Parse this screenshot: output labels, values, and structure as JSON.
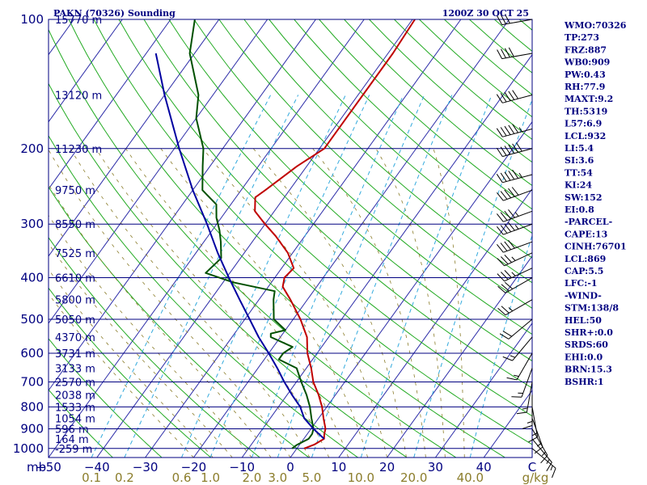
{
  "header": {
    "station": "PAKN (70326) Sounding",
    "time": "1200Z 30 OCT 25"
  },
  "chart_data": {
    "type": "skew-t",
    "p_top": 100,
    "p_bot": 1050,
    "t_range_bottom": [
      -50,
      50
    ],
    "pressure_ticks": [
      {
        "p": 100,
        "label": "100"
      },
      {
        "p": 200,
        "label": "200"
      },
      {
        "p": 300,
        "label": "300"
      },
      {
        "p": 400,
        "label": "400"
      },
      {
        "p": 500,
        "label": "500"
      },
      {
        "p": 600,
        "label": "600"
      },
      {
        "p": 700,
        "label": "700"
      },
      {
        "p": 800,
        "label": "800"
      },
      {
        "p": 900,
        "label": "900"
      },
      {
        "p": 1000,
        "label": "1000"
      }
    ],
    "pressure_unit": "mb",
    "height_levels": [
      {
        "p": 100,
        "label": "15770 m"
      },
      {
        "p": 150,
        "label": "13120 m"
      },
      {
        "p": 200,
        "label": "11230 m"
      },
      {
        "p": 250,
        "label": "9750 m"
      },
      {
        "p": 300,
        "label": "8550 m"
      },
      {
        "p": 350,
        "label": "7525 m"
      },
      {
        "p": 400,
        "label": "6610 m"
      },
      {
        "p": 450,
        "label": "5800 m"
      },
      {
        "p": 500,
        "label": "5050 m"
      },
      {
        "p": 550,
        "label": "4370 m"
      },
      {
        "p": 600,
        "label": "3731 m"
      },
      {
        "p": 650,
        "label": "3133 m"
      },
      {
        "p": 700,
        "label": "2570 m"
      },
      {
        "p": 750,
        "label": "2038 m"
      },
      {
        "p": 800,
        "label": "1533 m"
      },
      {
        "p": 850,
        "label": "1054 m"
      },
      {
        "p": 900,
        "label": "596 m"
      },
      {
        "p": 950,
        "label": "164 m"
      },
      {
        "p": 1000,
        "label": "-259 m"
      }
    ],
    "temp_ticks": [
      {
        "t": -50,
        "label": "−50"
      },
      {
        "t": -40,
        "label": "−40"
      },
      {
        "t": -30,
        "label": "−30"
      },
      {
        "t": -20,
        "label": "−20"
      },
      {
        "t": -10,
        "label": "−10"
      },
      {
        "t": 0,
        "label": "0"
      },
      {
        "t": 10,
        "label": "10"
      },
      {
        "t": 20,
        "label": "20"
      },
      {
        "t": 30,
        "label": "30"
      },
      {
        "t": 40,
        "label": "40"
      }
    ],
    "temp_axis_end_label": "C",
    "mixing_ratio_ticks": [
      {
        "w": 0.1,
        "label": "0.1"
      },
      {
        "w": 0.2,
        "label": "0.2"
      },
      {
        "w": 0.6,
        "label": "0.6"
      },
      {
        "w": 1.0,
        "label": "1.0"
      },
      {
        "w": 2.0,
        "label": "2.0"
      },
      {
        "w": 3.0,
        "label": "3.0"
      },
      {
        "w": 5.0,
        "label": "5.0"
      },
      {
        "w": 10.0,
        "label": "10.0"
      },
      {
        "w": 20.0,
        "label": "20.0"
      },
      {
        "w": 40.0,
        "label": "40.0"
      }
    ],
    "mixing_ratio_unit": "g/kg",
    "series": [
      {
        "kind": "temperature",
        "color": "#c00000",
        "points": [
          [
            1000,
            1.5
          ],
          [
            980,
            3.0
          ],
          [
            950,
            4.2
          ],
          [
            925,
            3.5
          ],
          [
            900,
            3.0
          ],
          [
            850,
            1.0
          ],
          [
            800,
            -1.0
          ],
          [
            750,
            -3.5
          ],
          [
            700,
            -6.5
          ],
          [
            650,
            -9.0
          ],
          [
            600,
            -12.0
          ],
          [
            550,
            -14.5
          ],
          [
            500,
            -18.5
          ],
          [
            450,
            -23.5
          ],
          [
            420,
            -27.0
          ],
          [
            400,
            -28.0
          ],
          [
            380,
            -27.5
          ],
          [
            350,
            -31.0
          ],
          [
            320,
            -36.0
          ],
          [
            300,
            -40.0
          ],
          [
            280,
            -44.0
          ],
          [
            260,
            -46.0
          ],
          [
            250,
            -45.0
          ],
          [
            220,
            -42.0
          ],
          [
            200,
            -39.0
          ],
          [
            150,
            -39.0
          ],
          [
            120,
            -39.0
          ],
          [
            100,
            -39.5
          ]
        ]
      },
      {
        "kind": "dewpoint",
        "color": "#005000",
        "points": [
          [
            1000,
            -1.0
          ],
          [
            980,
            -0.5
          ],
          [
            950,
            1.0
          ],
          [
            925,
            1.0
          ],
          [
            900,
            0.5
          ],
          [
            850,
            -1.5
          ],
          [
            800,
            -3.5
          ],
          [
            750,
            -6.0
          ],
          [
            700,
            -9.0
          ],
          [
            650,
            -12.0
          ],
          [
            620,
            -17.0
          ],
          [
            600,
            -17.0
          ],
          [
            580,
            -16.0
          ],
          [
            550,
            -22.0
          ],
          [
            540,
            -22.5
          ],
          [
            530,
            -20.0
          ],
          [
            500,
            -24.0
          ],
          [
            450,
            -27.0
          ],
          [
            430,
            -28.0
          ],
          [
            410,
            -38.0
          ],
          [
            390,
            -45.0
          ],
          [
            360,
            -44.0
          ],
          [
            330,
            -46.5
          ],
          [
            310,
            -48.5
          ],
          [
            290,
            -51.0
          ],
          [
            270,
            -53.0
          ],
          [
            250,
            -58.0
          ],
          [
            220,
            -61.5
          ],
          [
            200,
            -64.0
          ],
          [
            170,
            -70.0
          ],
          [
            150,
            -73.0
          ],
          [
            120,
            -81.0
          ],
          [
            100,
            -85.0
          ]
        ]
      },
      {
        "kind": "parcel",
        "color": "#0000a0",
        "points": [
          [
            950,
            4.2
          ],
          [
            900,
            0.5
          ],
          [
            850,
            -3.0
          ],
          [
            800,
            -5.5
          ],
          [
            750,
            -9.0
          ],
          [
            700,
            -12.5
          ],
          [
            650,
            -16.0
          ],
          [
            600,
            -20.0
          ],
          [
            550,
            -24.5
          ],
          [
            500,
            -29.0
          ],
          [
            450,
            -34.0
          ],
          [
            400,
            -39.5
          ],
          [
            350,
            -45.5
          ],
          [
            300,
            -52.0
          ],
          [
            250,
            -60.0
          ],
          [
            200,
            -69.0
          ],
          [
            150,
            -80.0
          ],
          [
            120,
            -88.0
          ]
        ]
      }
    ],
    "wind_barbs": [
      {
        "p": 100,
        "dir": 260,
        "kt": 30
      },
      {
        "p": 120,
        "dir": 260,
        "kt": 40
      },
      {
        "p": 150,
        "dir": 255,
        "kt": 50
      },
      {
        "p": 180,
        "dir": 255,
        "kt": 55
      },
      {
        "p": 200,
        "dir": 255,
        "kt": 60
      },
      {
        "p": 230,
        "dir": 255,
        "kt": 55
      },
      {
        "p": 250,
        "dir": 250,
        "kt": 50
      },
      {
        "p": 280,
        "dir": 250,
        "kt": 45
      },
      {
        "p": 300,
        "dir": 250,
        "kt": 45
      },
      {
        "p": 330,
        "dir": 250,
        "kt": 40
      },
      {
        "p": 350,
        "dir": 245,
        "kt": 35
      },
      {
        "p": 380,
        "dir": 245,
        "kt": 35
      },
      {
        "p": 400,
        "dir": 240,
        "kt": 30
      },
      {
        "p": 450,
        "dir": 240,
        "kt": 25
      },
      {
        "p": 500,
        "dir": 230,
        "kt": 20
      },
      {
        "p": 550,
        "dir": 220,
        "kt": 15
      },
      {
        "p": 600,
        "dir": 210,
        "kt": 15
      },
      {
        "p": 650,
        "dir": 200,
        "kt": 15
      },
      {
        "p": 700,
        "dir": 190,
        "kt": 15
      },
      {
        "p": 750,
        "dir": 180,
        "kt": 15
      },
      {
        "p": 800,
        "dir": 170,
        "kt": 15
      },
      {
        "p": 850,
        "dir": 160,
        "kt": 15
      },
      {
        "p": 900,
        "dir": 150,
        "kt": 15
      },
      {
        "p": 950,
        "dir": 140,
        "kt": 15
      },
      {
        "p": 1000,
        "dir": 130,
        "kt": 15
      }
    ]
  },
  "indices": [
    "WMO:70326",
    "TP:273",
    "FRZ:887",
    "WB0:909",
    "PW:0.43",
    "RH:77.9",
    "MAXT:9.2",
    "TH:5319",
    "L57:6.9",
    "LCL:932",
    "LI:5.4",
    "SI:3.6",
    "TT:54",
    "KI:24",
    "SW:152",
    "EI:0.8",
    "-PARCEL-",
    "CAPE:13",
    "CINH:76701",
    "LCL:869",
    "CAP:5.5",
    "LFC:-1",
    "-WIND-",
    "STM:138/8",
    "HEL:50",
    "SHR+:0.0",
    "SRDS:60",
    "EHI:0.0",
    "BRN:15.3",
    "BSHR:1"
  ]
}
